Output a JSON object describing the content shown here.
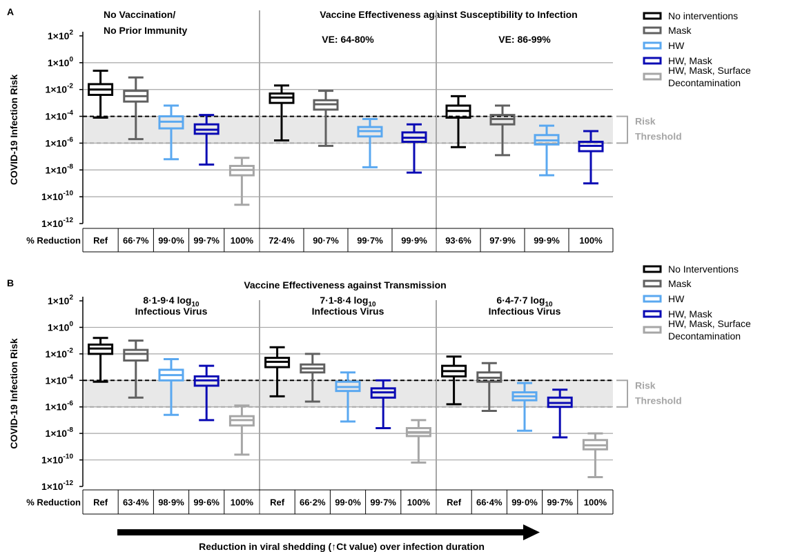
{
  "colors": {
    "No interventions": "#000000",
    "Mask": "#606060",
    "HW": "#5aa8f0",
    "HW, Mask": "#0a0ab4",
    "HW, Mask, Surface Decontamination": "#a6a6a6",
    "threshold_band": "#e8e8e8",
    "threshold_label": "#a6a6a6"
  },
  "arrow_label": "Reduction in viral shedding (↑Ct value) over infection duration",
  "chart_data": [
    {
      "type": "box",
      "panel_letter": "A",
      "title": "Vaccine Effectiveness against Susceptibility to Infection",
      "ylabel": "COVID-19 Infection Risk",
      "yscale": "log",
      "ylim_exp": [
        -12,
        2
      ],
      "ytick_exps": [
        2,
        0,
        -2,
        -4,
        -6,
        -8,
        -10,
        -12
      ],
      "ytick_labels": [
        "1×10",
        "1×10",
        "1×10",
        "1×10",
        "1×10",
        "1×10",
        "1×10",
        "1×10"
      ],
      "ytick_sup": [
        "2",
        "0",
        "-2",
        "-4",
        "-6",
        "-8",
        "-10",
        "-12"
      ],
      "risk_threshold": [
        1e-06,
        0.0001
      ],
      "risk_threshold_label": [
        "Risk",
        "Threshold"
      ],
      "reduction_header": "% Reduction",
      "legend": [
        "No interventions",
        "Mask",
        "HW",
        "HW, Mask",
        "HW, Mask, Surface",
        "Decontamination"
      ],
      "groups": [
        {
          "labels": [
            "No Vaccination/",
            "No Prior Immunity"
          ],
          "boxes": [
            {
              "series": "No interventions",
              "reduction": "Ref",
              "log10": [
                -4.1,
                -2.4,
                -2.0,
                -1.6,
                -0.6
              ]
            },
            {
              "series": "Mask",
              "reduction": "66·7%",
              "log10": [
                -5.7,
                -2.9,
                -2.5,
                -2.1,
                -1.1
              ]
            },
            {
              "series": "HW",
              "reduction": "99·0%",
              "log10": [
                -7.2,
                -4.9,
                -4.4,
                -4.0,
                -3.2
              ]
            },
            {
              "series": "HW, Mask",
              "reduction": "99·7%",
              "log10": [
                -7.6,
                -5.3,
                -5.0,
                -4.6,
                -3.9
              ]
            },
            {
              "series": "HW, Mask, Surface Decontamination",
              "reduction": "100%",
              "log10": [
                -10.6,
                -8.4,
                -8.0,
                -7.7,
                -7.1
              ]
            }
          ]
        },
        {
          "labels": [
            "VE: 64-80%"
          ],
          "boxes": [
            {
              "series": "No interventions",
              "reduction": "72·4%",
              "log10": [
                -5.8,
                -3.0,
                -2.6,
                -2.3,
                -1.7
              ]
            },
            {
              "series": "Mask",
              "reduction": "90·7%",
              "log10": [
                -6.2,
                -3.5,
                -3.1,
                -2.8,
                -2.1
              ]
            },
            {
              "series": "HW",
              "reduction": "99·7%",
              "log10": [
                -7.8,
                -5.5,
                -5.1,
                -4.8,
                -4.2
              ]
            },
            {
              "series": "HW, Mask",
              "reduction": "99·9%",
              "log10": [
                -8.2,
                -5.9,
                -5.6,
                -5.2,
                -4.6
              ]
            }
          ]
        },
        {
          "labels": [
            "VE: 86-99%"
          ],
          "boxes": [
            {
              "series": "No interventions",
              "reduction": "93·6%",
              "log10": [
                -6.3,
                -4.1,
                -3.6,
                -3.2,
                -2.5
              ]
            },
            {
              "series": "Mask",
              "reduction": "97·9%",
              "log10": [
                -6.9,
                -4.6,
                -4.2,
                -3.9,
                -3.2
              ]
            },
            {
              "series": "HW",
              "reduction": "99·9%",
              "log10": [
                -8.4,
                -6.1,
                -5.8,
                -5.4,
                -4.7
              ]
            },
            {
              "series": "HW, Mask",
              "reduction": "100%",
              "log10": [
                -9.0,
                -6.6,
                -6.2,
                -5.9,
                -5.1
              ]
            }
          ]
        }
      ]
    },
    {
      "type": "box",
      "panel_letter": "B",
      "title": "Vaccine Effectiveness against Transmission",
      "ylabel": "COVID-19 Infection Risk",
      "yscale": "log",
      "ylim_exp": [
        -12,
        2
      ],
      "ytick_exps": [
        2,
        0,
        -2,
        -4,
        -6,
        -8,
        -10,
        -12
      ],
      "ytick_labels": [
        "1×10",
        "1×10",
        "1×10",
        "1×10",
        "1×10",
        "1×10",
        "1×10",
        "1×10"
      ],
      "ytick_sup": [
        "2",
        "0",
        "-2",
        "-4",
        "-6",
        "-8",
        "-10",
        "-12"
      ],
      "risk_threshold": [
        1e-06,
        0.0001
      ],
      "risk_threshold_label": [
        "Risk",
        "Threshold"
      ],
      "reduction_header": "% Reduction",
      "legend": [
        "No Interventions",
        "Mask",
        "HW",
        "HW, Mask",
        "HW, Mask, Surface",
        "Decontamination"
      ],
      "groups": [
        {
          "labels": [
            "8·1-9·4 log",
            "Infectious Virus"
          ],
          "label_sub": "10",
          "boxes": [
            {
              "series": "No interventions",
              "reduction": "Ref",
              "log10": [
                -4.1,
                -2.0,
                -1.6,
                -1.3,
                -0.8
              ]
            },
            {
              "series": "Mask",
              "reduction": "63·4%",
              "log10": [
                -5.3,
                -2.5,
                -2.0,
                -1.7,
                -1.0
              ]
            },
            {
              "series": "HW",
              "reduction": "98·9%",
              "log10": [
                -6.6,
                -4.0,
                -3.6,
                -3.2,
                -2.4
              ]
            },
            {
              "series": "HW, Mask",
              "reduction": "99·6%",
              "log10": [
                -7.0,
                -4.4,
                -4.0,
                -3.7,
                -2.9
              ]
            },
            {
              "series": "HW, Mask, Surface Decontamination",
              "reduction": "100%",
              "log10": [
                -9.6,
                -7.4,
                -7.0,
                -6.7,
                -5.9
              ]
            }
          ]
        },
        {
          "labels": [
            "7·1-8·4 log",
            "Infectious Virus"
          ],
          "label_sub": "10",
          "boxes": [
            {
              "series": "No interventions",
              "reduction": "Ref",
              "log10": [
                -5.2,
                -3.0,
                -2.6,
                -2.3,
                -1.5
              ]
            },
            {
              "series": "Mask",
              "reduction": "66·2%",
              "log10": [
                -5.6,
                -3.4,
                -3.1,
                -2.8,
                -2.0
              ]
            },
            {
              "series": "HW",
              "reduction": "99·0%",
              "log10": [
                -7.1,
                -4.8,
                -4.5,
                -4.1,
                -3.4
              ]
            },
            {
              "series": "HW, Mask",
              "reduction": "99·7%",
              "log10": [
                -7.6,
                -5.3,
                -4.9,
                -4.6,
                -4.0
              ]
            },
            {
              "series": "HW, Mask, Surface Decontamination",
              "reduction": "100%",
              "log10": [
                -10.2,
                -8.2,
                -7.9,
                -7.6,
                -7.0
              ]
            }
          ]
        },
        {
          "labels": [
            "6·4-7·7 log",
            "Infectious Virus"
          ],
          "label_sub": "10",
          "boxes": [
            {
              "series": "No interventions",
              "reduction": "Ref",
              "log10": [
                -5.8,
                -3.7,
                -3.3,
                -2.9,
                -2.2
              ]
            },
            {
              "series": "Mask",
              "reduction": "66·4%",
              "log10": [
                -6.3,
                -4.1,
                -3.8,
                -3.4,
                -2.7
              ]
            },
            {
              "series": "HW",
              "reduction": "99·0%",
              "log10": [
                -7.8,
                -5.5,
                -5.2,
                -4.9,
                -4.2
              ]
            },
            {
              "series": "HW, Mask",
              "reduction": "99·7%",
              "log10": [
                -8.3,
                -6.0,
                -5.7,
                -5.3,
                -4.7
              ]
            },
            {
              "series": "HW, Mask, Surface Decontamination",
              "reduction": "100%",
              "log10": [
                -11.3,
                -9.2,
                -8.9,
                -8.5,
                -8.0
              ]
            }
          ]
        }
      ]
    }
  ]
}
